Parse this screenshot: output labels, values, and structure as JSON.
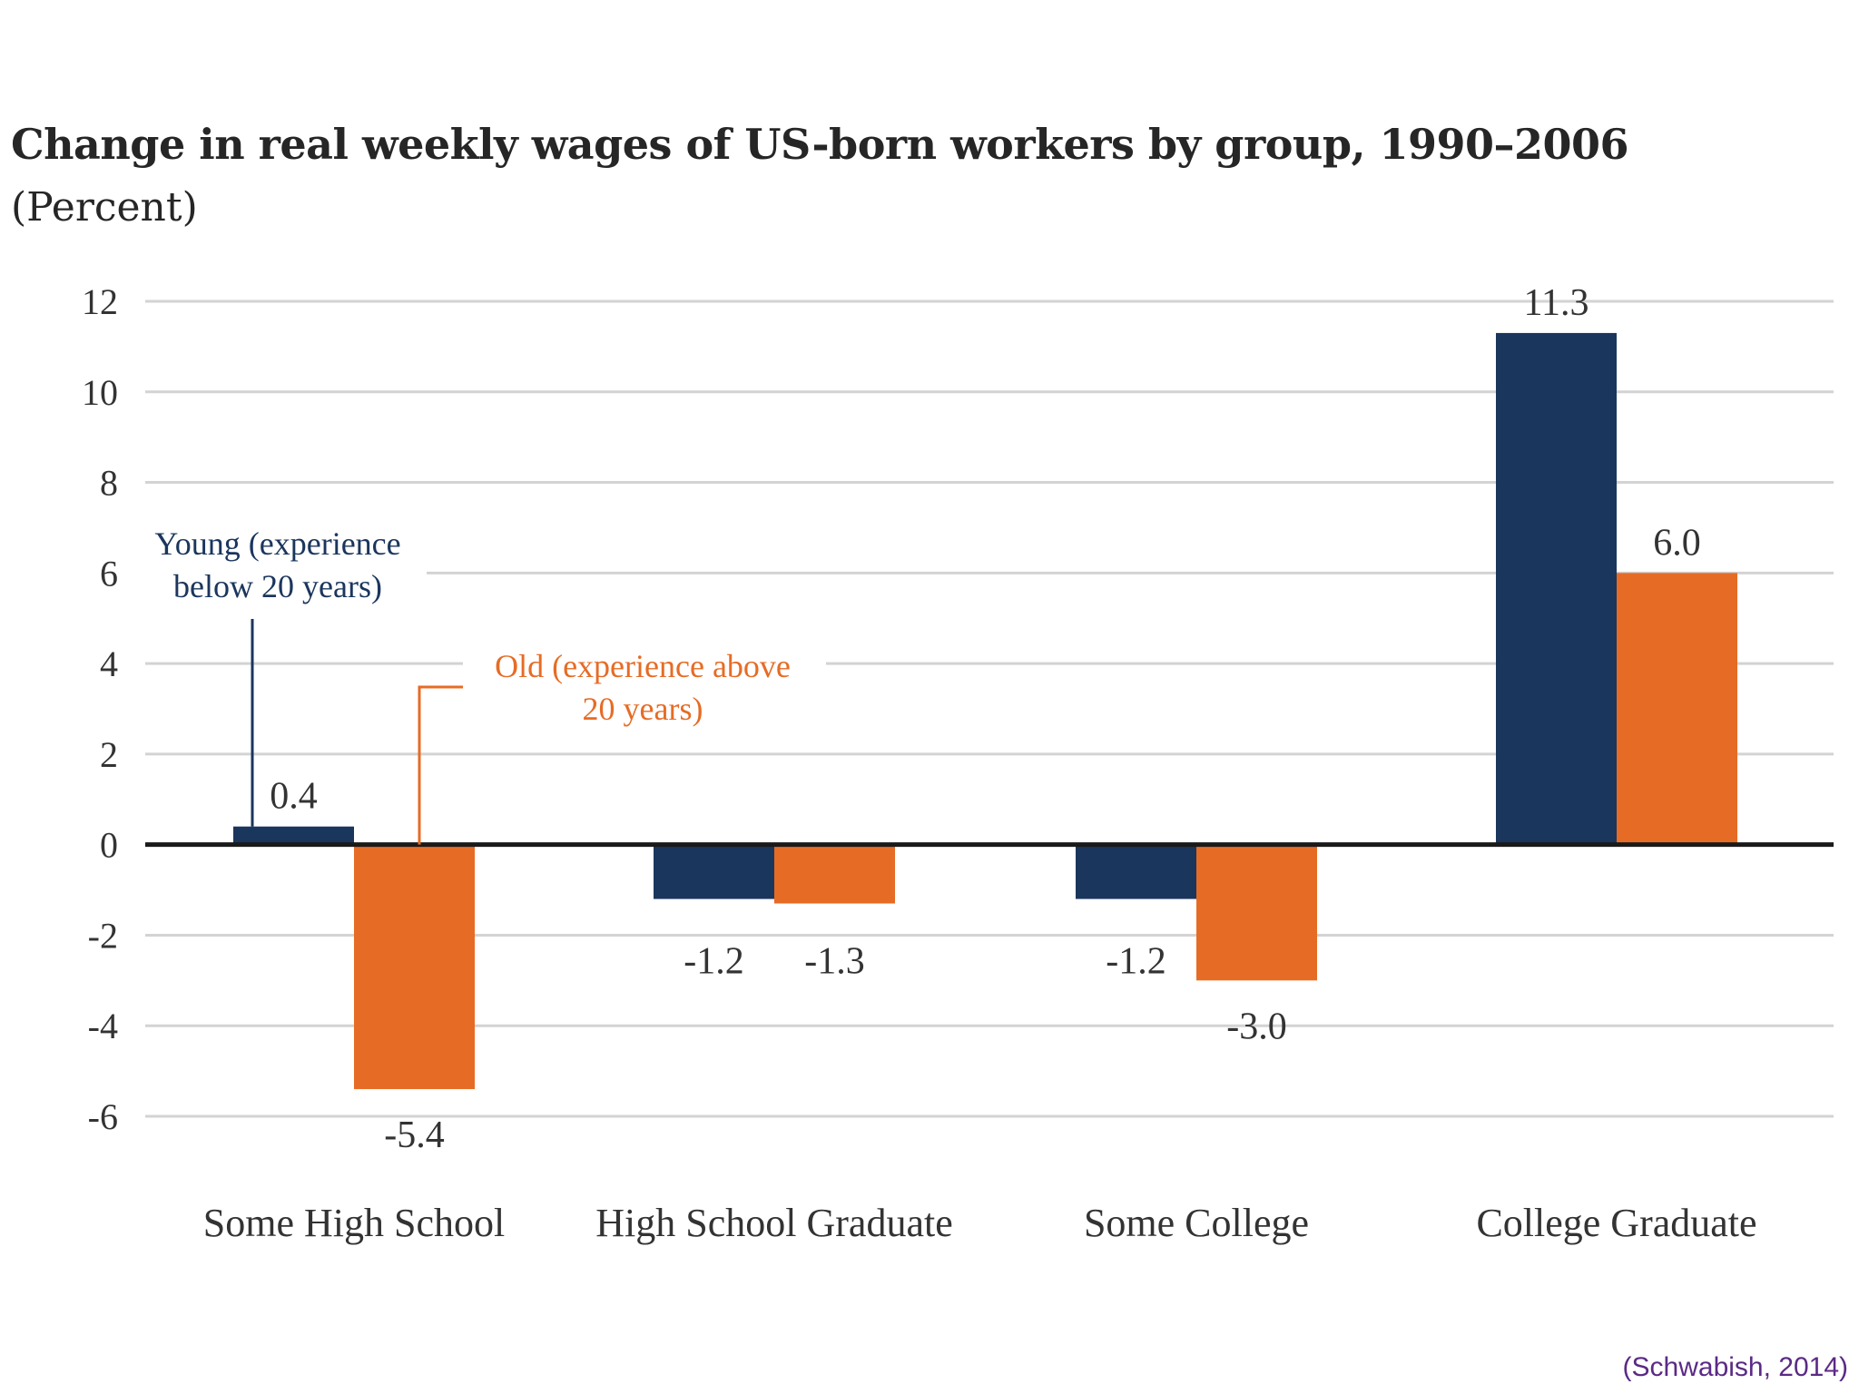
{
  "chart_data": {
    "type": "bar",
    "title": "Change in real weekly wages of US-born workers by group, 1990–2006",
    "subtitle": "(Percent)",
    "categories": [
      "Some High School",
      "High School Graduate",
      "Some College",
      "College Graduate"
    ],
    "series": [
      {
        "name": "Young (experience below 20 years)",
        "label_lines": [
          "Young (experience",
          "below 20 years)"
        ],
        "color": "#1b365d",
        "values": [
          0.4,
          -1.2,
          -1.2,
          11.3
        ],
        "value_labels": [
          "0.4",
          "-1.2",
          "-1.2",
          "11.3"
        ]
      },
      {
        "name": "Old (experience above 20 years)",
        "label_lines": [
          "Old (experience above",
          "20 years)"
        ],
        "color": "#e66c25",
        "values": [
          -5.4,
          -1.3,
          -3.0,
          6.0
        ],
        "value_labels": [
          "-5.4",
          "-1.3",
          "-3.0",
          "6.0"
        ]
      }
    ],
    "yticks": [
      12,
      10,
      8,
      6,
      4,
      2,
      0,
      -2,
      -4,
      -6
    ],
    "ylim": [
      -6,
      12
    ],
    "grid": true,
    "xlabel": "",
    "ylabel": "",
    "legend": "inline-annotations"
  },
  "source": "(Schwabish, 2014)"
}
